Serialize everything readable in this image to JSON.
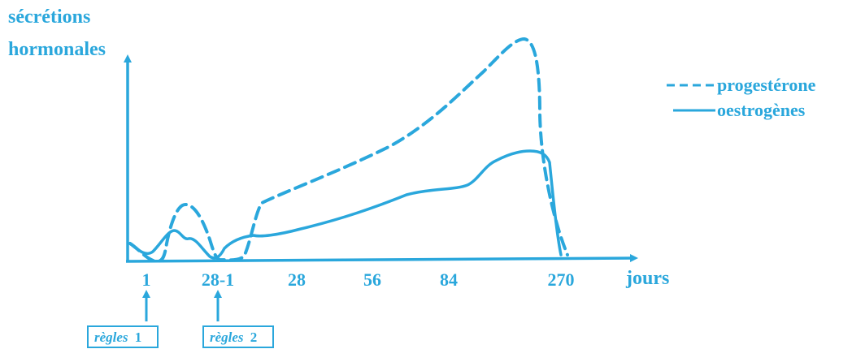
{
  "chart_data": {
    "type": "line",
    "ylabel_lines": [
      "sécrétions",
      "hormonales"
    ],
    "xlabel": "jours",
    "x_ticks": [
      "1",
      "28-1",
      "28",
      "56",
      "84",
      "270"
    ],
    "legend": {
      "placement": "top-right",
      "items": [
        {
          "label": "progestérone",
          "style": "dashed"
        },
        {
          "label": "oestrogènes",
          "style": "solid"
        }
      ]
    },
    "annotations": [
      {
        "text_italic": "règles",
        "text_number": "1",
        "at_tick": "1"
      },
      {
        "text_italic": "règles",
        "text_number": "2",
        "at_tick": "28-1"
      }
    ],
    "color": "#2aa7dc",
    "series": [
      {
        "name": "progestérone",
        "style": "dashed",
        "points": [
          [
            "1",
            0.02
          ],
          [
            "1",
            0.05
          ],
          [
            "1",
            0.45
          ],
          [
            "1",
            0.15
          ],
          [
            "28-1",
            0.0
          ],
          [
            "28-1",
            0.25
          ],
          [
            "28",
            0.6
          ],
          [
            "56",
            1.3
          ],
          [
            "84",
            2.0
          ],
          [
            "270",
            0.0
          ]
        ]
      },
      {
        "name": "oestrogènes",
        "style": "solid",
        "points": [
          [
            "1",
            0.18
          ],
          [
            "1",
            0.02
          ],
          [
            "1",
            0.32
          ],
          [
            "1",
            0.25
          ],
          [
            "28-1",
            0.0
          ],
          [
            "28-1",
            0.22
          ],
          [
            "28",
            0.15
          ],
          [
            "56",
            0.45
          ],
          [
            "84",
            0.85
          ],
          [
            "270",
            0.0
          ]
        ]
      }
    ]
  }
}
